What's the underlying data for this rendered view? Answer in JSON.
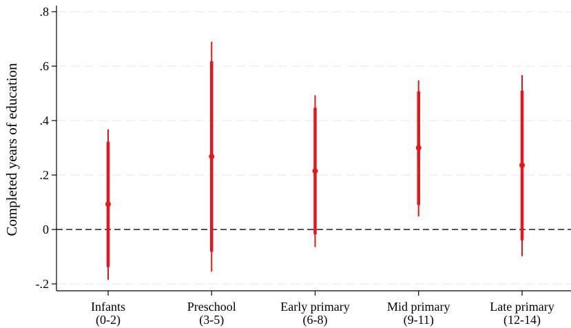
{
  "chart_data": {
    "type": "scatter",
    "ylabel": "Completed years of education",
    "xlabel": "",
    "ylim": [
      -0.2,
      0.8
    ],
    "yticks": [
      -0.2,
      0,
      0.2,
      0.4,
      0.6,
      0.8
    ],
    "ytick_labels": [
      "-.2",
      "0",
      ".2",
      ".4",
      ".6",
      ".8"
    ],
    "categories": [
      {
        "line1": "Infants",
        "line2": "(0-2)"
      },
      {
        "line1": "Preschool",
        "line2": "(3-5)"
      },
      {
        "line1": "Early primary",
        "line2": "(6-8)"
      },
      {
        "line1": "Mid primary",
        "line2": "(9-11)"
      },
      {
        "line1": "Late primary",
        "line2": "(12-14)"
      }
    ],
    "series": [
      {
        "estimates": [
          0.093,
          0.268,
          0.215,
          0.3,
          0.236
        ],
        "ci_outer": [
          [
            -0.185,
            0.368
          ],
          [
            -0.155,
            0.69
          ],
          [
            -0.065,
            0.493
          ],
          [
            0.048,
            0.548
          ],
          [
            -0.098,
            0.567
          ]
        ],
        "ci_inner": [
          [
            -0.138,
            0.322
          ],
          [
            -0.082,
            0.618
          ],
          [
            -0.018,
            0.447
          ],
          [
            0.09,
            0.507
          ],
          [
            -0.04,
            0.51
          ]
        ]
      }
    ],
    "reference_line": 0,
    "grid": true,
    "colors": {
      "marker": "#e8161b",
      "grid": "#ececec",
      "reference": "#555555",
      "axis": "#000000"
    }
  }
}
